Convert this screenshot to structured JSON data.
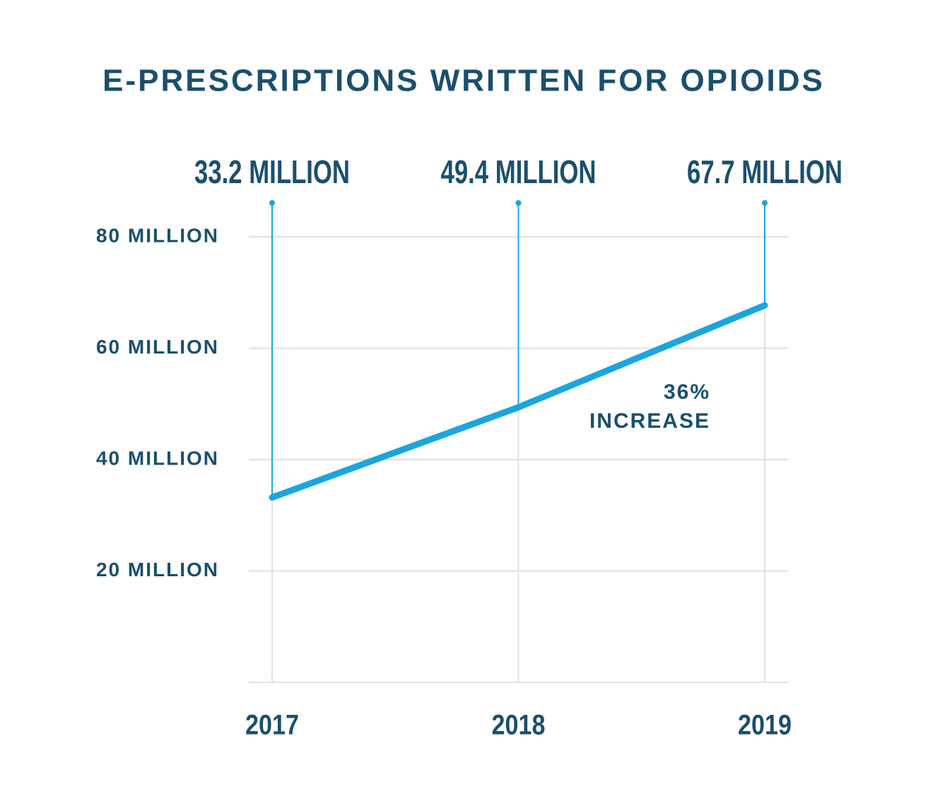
{
  "chart_data": {
    "type": "line",
    "title": "E-PRESCRIPTIONS WRITTEN FOR OPIOIDS",
    "categories": [
      "2017",
      "2018",
      "2019"
    ],
    "series": [
      {
        "color": "#1ba5de",
        "values": [
          33.2,
          49.4,
          67.7
        ],
        "value_labels": [
          "33.2 MILLION",
          "49.4 MILLION",
          "67.7 MILLION"
        ]
      }
    ],
    "ylim": [
      0,
      80
    ],
    "yticks": [
      {
        "value": 20,
        "label": "20 MILLION"
      },
      {
        "value": 40,
        "label": "40 MILLION"
      },
      {
        "value": 60,
        "label": "60 MILLION"
      },
      {
        "value": 80,
        "label": "80 MILLION"
      }
    ],
    "grid": true,
    "annotation": [
      "36%",
      "INCREASE"
    ]
  }
}
